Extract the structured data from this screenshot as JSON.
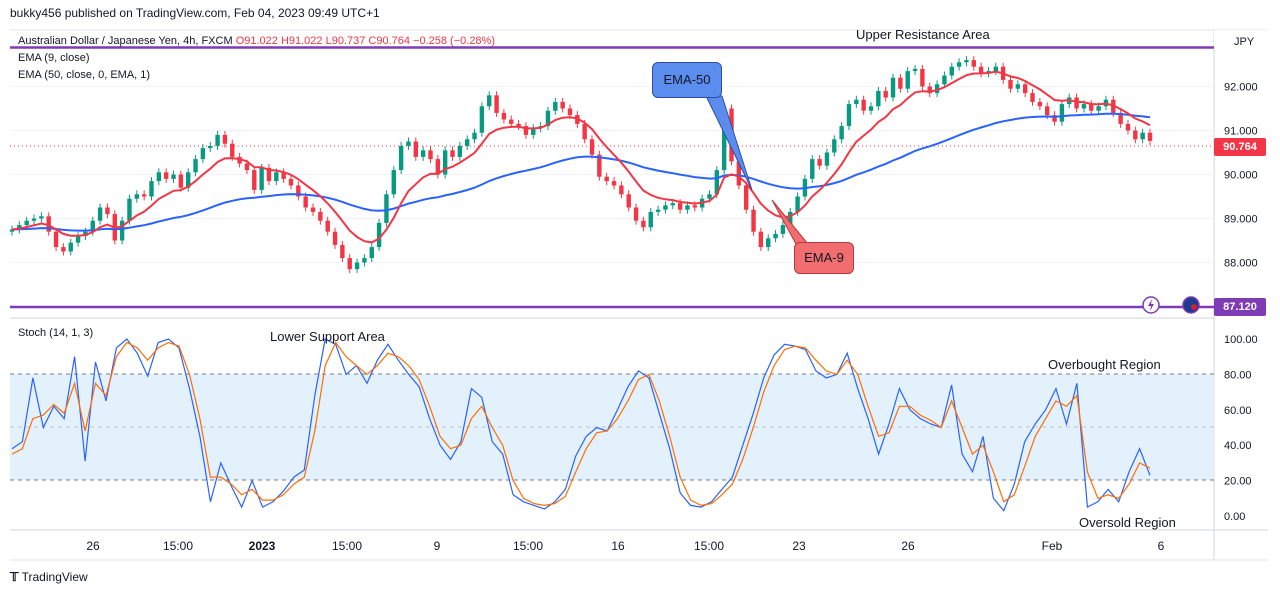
{
  "header": {
    "published": "bukky456 published on TradingView.com, Feb 04, 2023 09:49 UTC+1",
    "symbol": "Australian Dollar / Japanese Yen, 4h, FXCM",
    "ohlc": "O91.022 H91.022 L90.737 C90.764 −0.258 (−0.28%)",
    "ema9_label": "EMA (9, close)",
    "ema50_label": "EMA (50, close, 0, EMA, 1)",
    "stoch_label": "Stoch (14, 1, 3)"
  },
  "price_axis": {
    "currency": "JPY",
    "ticks": [
      "92.000",
      "91.000",
      "90.000",
      "89.000",
      "88.000"
    ],
    "last_price": "90.764",
    "support_price": "87.120"
  },
  "stoch_axis": {
    "ticks": [
      "100.00",
      "80.00",
      "60.00",
      "40.00",
      "20.00",
      "0.00"
    ]
  },
  "time_axis": {
    "labels": [
      "26",
      "15:00",
      "2023",
      "15:00",
      "9",
      "15:00",
      "16",
      "15:00",
      "23",
      "26",
      "Feb",
      "6"
    ]
  },
  "annotations": {
    "upper": "Upper Resistance Area",
    "lower": "Lower Support Area",
    "ema50": "EMA-50",
    "ema9": "EMA-9",
    "overbought": "Overbought Region",
    "oversold": "Oversold Region"
  },
  "footer": {
    "brand": "TradingView"
  },
  "colors": {
    "up": "#089981",
    "down": "#f23645",
    "ema9": "#f23645",
    "ema50": "#2962ff",
    "level": "#7e3bb5",
    "stoch_k": "#2962ff",
    "stoch_d": "#ff6d00",
    "stoch_band": "#e3f1fc",
    "ema50_box": "#5b8def",
    "ema9_box": "#f26d6f"
  },
  "chart_data": [
    {
      "type": "candlestick",
      "symbol": "AUDJPY",
      "timeframe": "4h",
      "y_range": [
        87.0,
        93.0
      ],
      "resistance_level": 92.96,
      "support_level": 87.12,
      "last_close": 90.764,
      "close": [
        88.75,
        88.85,
        88.95,
        89.0,
        89.05,
        88.7,
        88.35,
        88.25,
        88.45,
        88.6,
        88.7,
        88.95,
        89.25,
        89.1,
        88.5,
        88.95,
        89.45,
        89.55,
        89.5,
        89.85,
        90.05,
        89.9,
        90.0,
        89.7,
        90.05,
        90.35,
        90.6,
        90.65,
        90.9,
        90.7,
        90.4,
        90.25,
        90.1,
        89.65,
        90.15,
        89.85,
        90.05,
        89.9,
        89.75,
        89.5,
        89.25,
        89.15,
        88.95,
        88.7,
        88.4,
        88.1,
        87.85,
        88.0,
        88.1,
        88.35,
        88.9,
        89.55,
        90.1,
        90.65,
        90.75,
        90.4,
        90.55,
        90.35,
        90.0,
        90.55,
        90.4,
        90.65,
        90.8,
        90.95,
        91.55,
        91.8,
        91.4,
        91.25,
        91.15,
        91.1,
        90.9,
        91.05,
        91.1,
        91.45,
        91.65,
        91.5,
        91.35,
        91.15,
        90.8,
        90.45,
        89.95,
        89.85,
        89.75,
        89.55,
        89.25,
        88.95,
        88.8,
        89.15,
        89.2,
        89.3,
        89.35,
        89.2,
        89.3,
        89.25,
        89.45,
        89.55,
        90.1,
        91.5,
        90.3,
        89.75,
        89.2,
        88.7,
        88.35,
        88.55,
        88.65,
        88.85,
        89.15,
        89.5,
        89.9,
        90.35,
        90.2,
        90.5,
        90.8,
        91.1,
        91.6,
        91.7,
        91.45,
        91.55,
        91.9,
        91.75,
        92.2,
        91.95,
        92.35,
        92.4,
        92.0,
        91.85,
        92.05,
        92.25,
        92.45,
        92.55,
        92.6,
        92.45,
        92.3,
        92.35,
        92.45,
        92.15,
        91.95,
        92.05,
        91.85,
        91.65,
        91.55,
        91.35,
        91.2,
        91.6,
        91.75,
        91.5,
        91.6,
        91.45,
        91.55,
        91.7,
        91.4,
        91.15,
        91.0,
        90.8,
        90.95,
        90.764
      ],
      "ema9_approx": [
        88.75,
        88.9,
        88.95,
        88.9,
        88.8,
        88.65,
        88.6,
        88.6,
        88.65,
        88.75,
        88.9,
        88.95,
        89.05,
        89.25,
        89.45,
        89.6,
        89.75,
        89.9,
        90.05,
        90.15,
        90.2,
        90.3,
        90.4,
        90.45,
        90.35,
        90.25,
        90.15,
        90.05,
        89.85,
        89.65,
        89.45,
        89.15,
        88.85,
        88.55,
        88.4,
        88.6,
        88.95,
        89.55,
        90.0,
        90.25,
        90.3,
        90.3,
        90.45,
        90.6,
        90.8,
        91.05,
        91.1,
        91.05,
        91.0,
        91.05,
        91.3,
        91.5,
        91.45,
        91.1,
        90.55,
        90.05,
        89.6,
        89.3,
        89.2,
        89.2,
        89.25,
        89.35,
        89.45,
        90.15,
        90.2,
        89.85,
        89.35,
        88.95,
        88.85,
        89.1,
        89.55,
        90.0,
        90.6,
        91.15,
        91.5,
        91.65,
        91.9,
        92.1,
        92.35,
        92.5,
        92.45,
        92.4,
        92.4,
        92.3,
        92.1,
        91.9,
        91.65,
        91.55,
        91.6,
        91.55,
        91.6,
        91.45,
        91.25,
        91.05,
        90.9
      ]
    },
    {
      "type": "line",
      "indicator": "Stoch (14, 1, 3)",
      "ylim": [
        0,
        100
      ],
      "levels": [
        80,
        50,
        20
      ],
      "series": [
        {
          "name": "%K",
          "values": [
            38,
            42,
            78,
            50,
            62,
            55,
            90,
            31,
            87,
            65,
            95,
            100,
            92,
            79,
            98,
            100,
            95,
            72,
            45,
            8,
            30,
            17,
            5,
            20,
            5,
            8,
            14,
            22,
            26,
            68,
            100,
            97,
            80,
            85,
            75,
            88,
            97,
            88,
            80,
            73,
            55,
            40,
            32,
            42,
            72,
            67,
            42,
            35,
            12,
            8,
            6,
            4,
            8,
            15,
            34,
            45,
            50,
            48,
            60,
            73,
            82,
            78,
            58,
            38,
            13,
            6,
            5,
            8,
            15,
            22,
            40,
            58,
            78,
            91,
            97,
            96,
            94,
            82,
            78,
            80,
            92,
            72,
            55,
            35,
            52,
            72,
            60,
            55,
            52,
            50,
            74,
            35,
            25,
            45,
            10,
            3,
            18,
            42,
            52,
            60,
            72,
            52,
            75,
            5,
            8,
            15,
            8,
            25,
            38,
            23
          ]
        },
        {
          "name": "%D",
          "values": [
            35,
            38,
            55,
            57,
            63,
            58,
            75,
            48,
            75,
            68,
            90,
            98,
            95,
            88,
            95,
            98,
            96,
            80,
            55,
            22,
            22,
            18,
            12,
            15,
            9,
            9,
            12,
            18,
            22,
            48,
            85,
            98,
            90,
            85,
            80,
            85,
            92,
            90,
            85,
            77,
            62,
            45,
            38,
            40,
            55,
            62,
            50,
            40,
            20,
            10,
            7,
            6,
            7,
            11,
            25,
            38,
            47,
            48,
            55,
            65,
            77,
            80,
            65,
            45,
            22,
            9,
            6,
            7,
            12,
            18,
            32,
            50,
            70,
            85,
            94,
            96,
            95,
            88,
            82,
            80,
            88,
            80,
            62,
            45,
            47,
            62,
            62,
            57,
            54,
            50,
            65,
            50,
            35,
            40,
            25,
            8,
            12,
            28,
            45,
            55,
            65,
            62,
            68,
            25,
            10,
            12,
            10,
            18,
            30,
            27
          ]
        }
      ]
    }
  ]
}
